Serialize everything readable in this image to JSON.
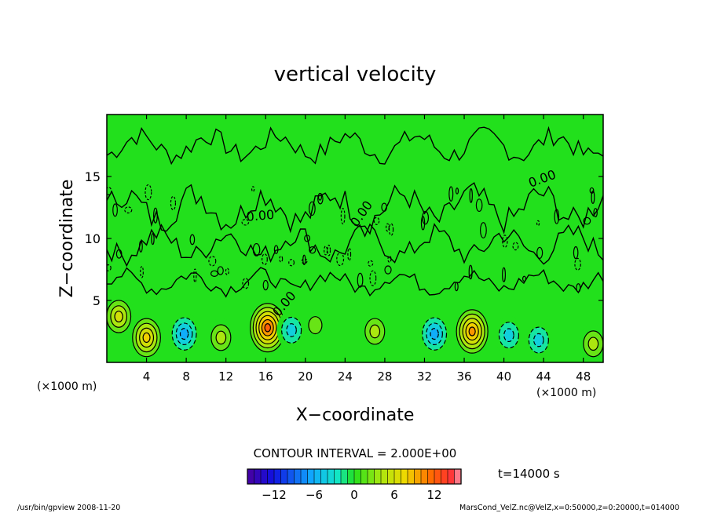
{
  "chart_data": {
    "type": "heatmap",
    "title": "vertical velocity",
    "xlabel": "X−coordinate",
    "ylabel": "Z−coordinate",
    "x_units_left": "(×1000 m)",
    "x_units_right": "(×1000 m)",
    "xlim": [
      0,
      50
    ],
    "ylim": [
      0,
      20
    ],
    "x_ticks": [
      4,
      8,
      12,
      16,
      20,
      24,
      28,
      32,
      36,
      40,
      44,
      48
    ],
    "y_ticks": [
      5,
      10,
      15
    ],
    "contour_labels": [
      "0.00",
      "0.00",
      "0.00",
      "0.00"
    ],
    "contour_interval": "CONTOUR INTERVAL = 2.000E+00",
    "time": "t=14000 s",
    "colorbar": {
      "min": -16,
      "max": 16,
      "step": 1,
      "ticks": [
        -12,
        -6,
        0,
        6,
        12
      ],
      "tick_labels": [
        "−12",
        "−6",
        "0",
        "6",
        "12"
      ]
    },
    "cells": [
      {
        "x": 1.2,
        "z": 3.7,
        "w": 6
      },
      {
        "x": 4.0,
        "z": 2.0,
        "w": 8
      },
      {
        "x": 7.8,
        "z": 2.3,
        "w": -6
      },
      {
        "x": 11.5,
        "z": 2.0,
        "w": 4
      },
      {
        "x": 16.2,
        "z": 2.8,
        "w": 12
      },
      {
        "x": 18.6,
        "z": 2.6,
        "w": -4
      },
      {
        "x": 21.0,
        "z": 3.0,
        "w": 2
      },
      {
        "x": 27.0,
        "z": 2.5,
        "w": 4
      },
      {
        "x": 33.0,
        "z": 2.3,
        "w": -6
      },
      {
        "x": 36.8,
        "z": 2.5,
        "w": 10
      },
      {
        "x": 40.5,
        "z": 2.2,
        "w": -4
      },
      {
        "x": 43.5,
        "z": 1.8,
        "w": -4
      },
      {
        "x": 49.0,
        "z": 1.5,
        "w": 4
      }
    ]
  },
  "footer": {
    "left": "/usr/bin/gpview   2008-11-20",
    "right": "MarsCond_VelZ.nc@VelZ,x=0:50000,z=0:20000,t=014000"
  }
}
